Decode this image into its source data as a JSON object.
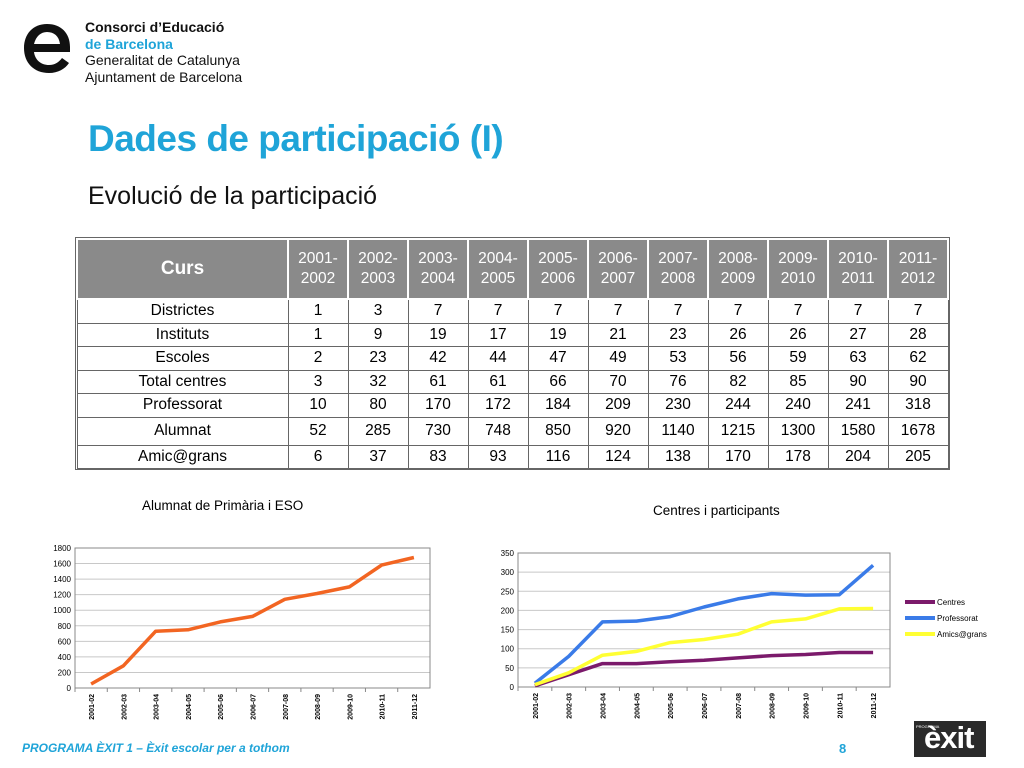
{
  "logo": {
    "line1": "Consorci d’Educació",
    "line2": "de Barcelona",
    "line3": "Generalitat de Catalunya",
    "line4": "Ajuntament de Barcelona"
  },
  "title": "Dades de participació (I)",
  "subtitle": "Evolució de la participació",
  "table": {
    "corner": "Curs",
    "years": [
      "2001-2002",
      "2002-2003",
      "2003-2004",
      "2004-2005",
      "2005-2006",
      "2006-2007",
      "2007-2008",
      "2008-2009",
      "2009-2010",
      "2010-2011",
      "2011-2012"
    ],
    "rows": [
      {
        "label": "Districtes",
        "values": [
          "1",
          "3",
          "7",
          "7",
          "7",
          "7",
          "7",
          "7",
          "7",
          "7",
          "7"
        ]
      },
      {
        "label": "Instituts",
        "values": [
          "1",
          "9",
          "19",
          "17",
          "19",
          "21",
          "23",
          "26",
          "26",
          "27",
          "28"
        ]
      },
      {
        "label": "Escoles",
        "values": [
          "2",
          "23",
          "42",
          "44",
          "47",
          "49",
          "53",
          "56",
          "59",
          "63",
          "62"
        ]
      },
      {
        "label": "Total centres",
        "values": [
          "3",
          "32",
          "61",
          "61",
          "66",
          "70",
          "76",
          "82",
          "85",
          "90",
          "90"
        ]
      },
      {
        "label": "Professorat",
        "values": [
          "10",
          "80",
          "170",
          "172",
          "184",
          "209",
          "230",
          "244",
          "240",
          "241",
          "318"
        ]
      },
      {
        "label": "Alumnat",
        "values": [
          "52",
          "285",
          "730",
          "748",
          "850",
          "920",
          "1140",
          "1215",
          "1300",
          "1580",
          "1678"
        ]
      },
      {
        "label": "Amic@grans",
        "values": [
          "6",
          "37",
          "83",
          "93",
          "116",
          "124",
          "138",
          "170",
          "178",
          "204",
          "205"
        ]
      }
    ]
  },
  "chart_data": [
    {
      "type": "line",
      "title": "Alumnat de Primària i ESO",
      "categories": [
        "2001-02",
        "2002-03",
        "2003-04",
        "2004-05",
        "2005-06",
        "2006-07",
        "2007-08",
        "2008-09",
        "2009-10",
        "2010-11",
        "2011-12"
      ],
      "series": [
        {
          "values": [
            52,
            285,
            730,
            748,
            850,
            920,
            1140,
            1215,
            1300,
            1580,
            1678
          ],
          "color": "#f26522"
        }
      ],
      "ylim": [
        0,
        1800
      ],
      "yticks": [
        0,
        200,
        400,
        600,
        800,
        1000,
        1200,
        1400,
        1600,
        1800
      ],
      "grid": true,
      "legend": "none"
    },
    {
      "type": "line",
      "title": "Centres i participants",
      "categories": [
        "2001-02",
        "2002-03",
        "2003-04",
        "2004-05",
        "2005-06",
        "2006-07",
        "2007-08",
        "2008-09",
        "2009-10",
        "2010-11",
        "2011-12"
      ],
      "series": [
        {
          "name": "Centres",
          "values": [
            3,
            32,
            61,
            61,
            66,
            70,
            76,
            82,
            85,
            90,
            90
          ],
          "color": "#7b1a6b"
        },
        {
          "name": "Professorat",
          "values": [
            10,
            80,
            170,
            172,
            184,
            209,
            230,
            244,
            240,
            241,
            318
          ],
          "color": "#3a7be8"
        },
        {
          "name": "Amics@grans",
          "values": [
            6,
            37,
            83,
            93,
            116,
            124,
            138,
            170,
            178,
            204,
            205
          ],
          "color": "#ffff33"
        }
      ],
      "ylim": [
        0,
        350
      ],
      "yticks": [
        0,
        50,
        100,
        150,
        200,
        250,
        300,
        350
      ],
      "grid": true,
      "legend": "right"
    }
  ],
  "footer": {
    "program": "PROGRAMA ÈXIT 1 – Èxit escolar per a tothom",
    "page": "8"
  },
  "exit_logo": {
    "small": "PROGRAMA",
    "big": "èxit"
  }
}
